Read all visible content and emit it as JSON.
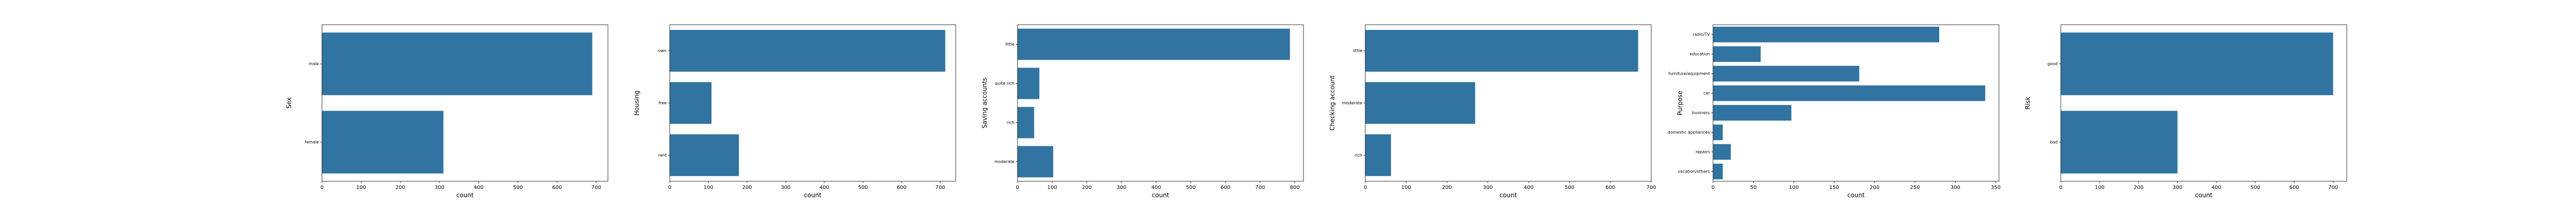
{
  "chart_data": [
    {
      "type": "bar",
      "orientation": "horizontal",
      "categories": [
        "male",
        "female"
      ],
      "values": [
        690,
        310
      ],
      "xlabel": "count",
      "ylabel": "Sex",
      "xlim": [
        0,
        730
      ],
      "xticks": [
        0,
        100,
        200,
        300,
        400,
        500,
        600,
        700
      ],
      "bar_color": "#3274a1"
    },
    {
      "type": "bar",
      "orientation": "horizontal",
      "categories": [
        "own",
        "free",
        "rent"
      ],
      "values": [
        713,
        108,
        179
      ],
      "xlabel": "count",
      "ylabel": "Housing",
      "xlim": [
        0,
        740
      ],
      "xticks": [
        0,
        100,
        200,
        300,
        400,
        500,
        600,
        700
      ],
      "bar_color": "#3274a1"
    },
    {
      "type": "bar",
      "orientation": "horizontal",
      "categories": [
        "little",
        "quite rich",
        "rich",
        "moderate"
      ],
      "values": [
        786,
        63,
        48,
        103
      ],
      "xlabel": "count",
      "ylabel": "Saving accounts",
      "xlim": [
        0,
        825
      ],
      "xticks": [
        0,
        100,
        200,
        300,
        400,
        500,
        600,
        700,
        800
      ],
      "bar_color": "#3274a1"
    },
    {
      "type": "bar",
      "orientation": "horizontal",
      "categories": [
        "little",
        "moderate",
        "rich"
      ],
      "values": [
        668,
        269,
        63
      ],
      "xlabel": "count",
      "ylabel": "Checking account",
      "xlim": [
        0,
        700
      ],
      "xticks": [
        0,
        100,
        200,
        300,
        400,
        500,
        600,
        700
      ],
      "bar_color": "#3274a1"
    },
    {
      "type": "bar",
      "orientation": "horizontal",
      "categories": [
        "radio/TV",
        "education",
        "furniture/equipment",
        "car",
        "business",
        "domestic appliances",
        "repairs",
        "vacation/others"
      ],
      "values": [
        280,
        59,
        181,
        337,
        97,
        12,
        22,
        12
      ],
      "xlabel": "count",
      "ylabel": "Purpose",
      "xlim": [
        0,
        354
      ],
      "xticks": [
        0,
        50,
        100,
        150,
        200,
        250,
        300,
        350
      ],
      "bar_color": "#3274a1"
    },
    {
      "type": "bar",
      "orientation": "horizontal",
      "categories": [
        "good",
        "bad"
      ],
      "values": [
        700,
        300
      ],
      "xlabel": "count",
      "ylabel": "Risk",
      "xlim": [
        0,
        735
      ],
      "xticks": [
        0,
        100,
        200,
        300,
        400,
        500,
        600,
        700
      ],
      "bar_color": "#3274a1"
    }
  ]
}
